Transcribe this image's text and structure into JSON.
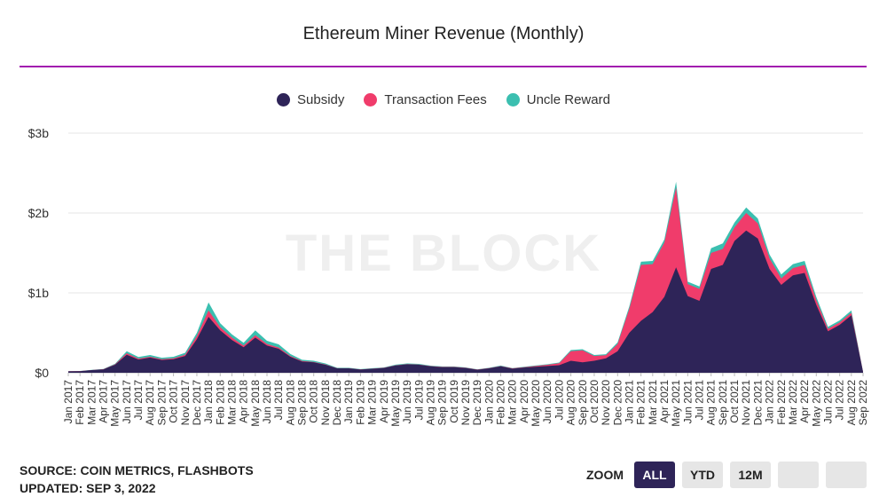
{
  "title": "Ethereum Miner Revenue (Monthly)",
  "watermark": "THE BLOCK",
  "footer": {
    "source": "SOURCE: COIN METRICS, FLASHBOTS",
    "updated": "UPDATED: SEP 3, 2022"
  },
  "zoom": {
    "label": "ZOOM",
    "buttons": [
      "ALL",
      "YTD",
      "12M",
      "",
      ""
    ],
    "active": "ALL"
  },
  "colors": {
    "subsidy": "#2e2458",
    "fees": "#f03c6b",
    "uncle": "#3bbfb0",
    "accent": "#a21caf",
    "grid": "#e5e5e5"
  },
  "chart_data": {
    "type": "area",
    "stacked": true,
    "title": "Ethereum Miner Revenue (Monthly)",
    "xlabel": "",
    "ylabel": "",
    "ylim": [
      0,
      3000000000
    ],
    "yticks": [
      "$0",
      "$1b",
      "$2b",
      "$3b"
    ],
    "grid": true,
    "legend_position": "top",
    "categories": [
      "Jan 2017",
      "Feb 2017",
      "Mar 2017",
      "Apr 2017",
      "May 2017",
      "Jun 2017",
      "Jul 2017",
      "Aug 2017",
      "Sep 2017",
      "Oct 2017",
      "Nov 2017",
      "Dec 2017",
      "Jan 2018",
      "Feb 2018",
      "Mar 2018",
      "Apr 2018",
      "May 2018",
      "Jun 2018",
      "Jul 2018",
      "Aug 2018",
      "Sep 2018",
      "Oct 2018",
      "Nov 2018",
      "Dec 2018",
      "Jan 2019",
      "Feb 2019",
      "Mar 2019",
      "Apr 2019",
      "May 2019",
      "Jun 2019",
      "Jul 2019",
      "Aug 2019",
      "Sep 2019",
      "Oct 2019",
      "Nov 2019",
      "Dec 2019",
      "Jan 2020",
      "Feb 2020",
      "Mar 2020",
      "Apr 2020",
      "May 2020",
      "Jun 2020",
      "Jul 2020",
      "Aug 2020",
      "Sep 2020",
      "Oct 2020",
      "Nov 2020",
      "Dec 2020",
      "Jan 2021",
      "Feb 2021",
      "Mar 2021",
      "Apr 2021",
      "May 2021",
      "Jun 2021",
      "Jul 2021",
      "Aug 2021",
      "Sep 2021",
      "Oct 2021",
      "Nov 2021",
      "Dec 2021",
      "Jan 2022",
      "Feb 2022",
      "Mar 2022",
      "Apr 2022",
      "May 2022",
      "Jun 2022",
      "Jul 2022",
      "Aug 2022",
      "Sep 2022"
    ],
    "series": [
      {
        "name": "Subsidy",
        "color": "#2e2458",
        "values": [
          18,
          20,
          33,
          42,
          100,
          225,
          165,
          190,
          160,
          170,
          210,
          420,
          700,
          530,
          410,
          320,
          440,
          340,
          300,
          200,
          140,
          130,
          100,
          55,
          55,
          40,
          50,
          60,
          90,
          105,
          100,
          80,
          70,
          70,
          60,
          38,
          55,
          80,
          52,
          65,
          75,
          85,
          95,
          150,
          130,
          150,
          180,
          270,
          500,
          650,
          760,
          950,
          1320,
          960,
          900,
          1300,
          1350,
          1650,
          1780,
          1680,
          1300,
          1100,
          1220,
          1250,
          850,
          520,
          600,
          720,
          10
        ]
      },
      {
        "name": "Transaction Fees",
        "color": "#f03c6b",
        "values": [
          1,
          1,
          1,
          2,
          5,
          20,
          12,
          10,
          10,
          10,
          15,
          40,
          80,
          40,
          30,
          20,
          30,
          20,
          15,
          10,
          7,
          5,
          4,
          2,
          2,
          2,
          2,
          2,
          3,
          4,
          3,
          3,
          3,
          3,
          2,
          2,
          3,
          4,
          3,
          5,
          10,
          15,
          25,
          120,
          150,
          60,
          40,
          90,
          300,
          700,
          600,
          680,
          1000,
          150,
          150,
          200,
          200,
          170,
          220,
          190,
          130,
          80,
          90,
          100,
          60,
          30,
          30,
          30,
          1
        ]
      },
      {
        "name": "Uncle Reward",
        "color": "#3bbfb0",
        "values": [
          1,
          1,
          2,
          3,
          8,
          25,
          20,
          22,
          18,
          20,
          25,
          40,
          100,
          50,
          40,
          35,
          60,
          40,
          40,
          25,
          15,
          15,
          12,
          6,
          6,
          4,
          5,
          5,
          8,
          8,
          8,
          6,
          6,
          6,
          5,
          3,
          4,
          6,
          4,
          5,
          6,
          7,
          8,
          15,
          15,
          12,
          12,
          20,
          30,
          40,
          40,
          40,
          70,
          30,
          30,
          60,
          70,
          60,
          70,
          60,
          50,
          50,
          50,
          50,
          40,
          25,
          25,
          30,
          2
        ]
      }
    ]
  }
}
